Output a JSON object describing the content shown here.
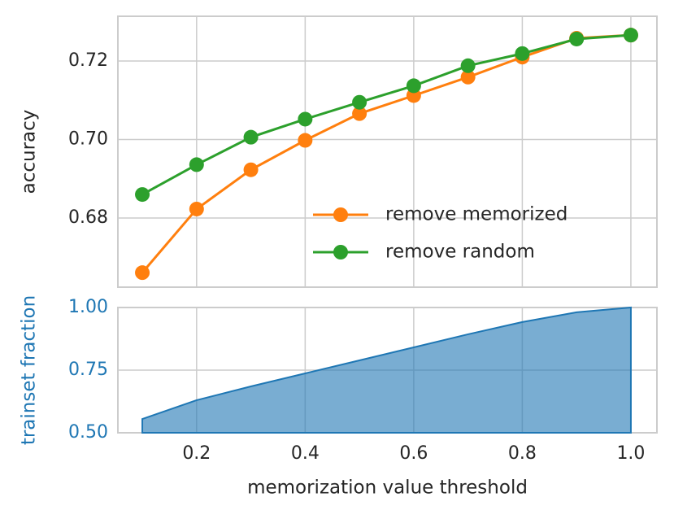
{
  "chart_data": [
    {
      "type": "line",
      "ylabel": "accuracy",
      "legend": "lower right",
      "grid": true,
      "x": [
        0.1,
        0.2,
        0.3,
        0.4,
        0.5,
        0.6,
        0.7,
        0.8,
        0.9,
        1.0
      ],
      "series": [
        {
          "name": "remove memorized",
          "color": "#ff7f0e",
          "values": [
            0.6661,
            0.6823,
            0.6923,
            0.6998,
            0.7066,
            0.7112,
            0.7159,
            0.721,
            0.7258,
            0.7266
          ]
        },
        {
          "name": "remove random",
          "color": "#2ca02c",
          "values": [
            0.686,
            0.6936,
            0.7006,
            0.7052,
            0.7095,
            0.7137,
            0.7188,
            0.7219,
            0.7256,
            0.7266
          ]
        }
      ],
      "xlim": [
        0.055,
        1.048
      ],
      "xticks": [
        0.2,
        0.4,
        0.6,
        0.8,
        1
      ],
      "ylim": [
        0.6624,
        0.7314
      ],
      "yticks": [
        {
          "value": 0.68,
          "label": "0.68"
        },
        {
          "value": 0.7,
          "label": "0.70"
        },
        {
          "value": 0.72,
          "label": "0.72"
        }
      ]
    },
    {
      "type": "area",
      "xlabel": "memorization value threshold",
      "ylabel": "trainset fraction",
      "color": "#1f77b4",
      "grid": true,
      "x": [
        0.1,
        0.2,
        0.3,
        0.4,
        0.5,
        0.6,
        0.7,
        0.8,
        0.9,
        1.0
      ],
      "values": [
        0.555,
        0.63,
        0.685,
        0.737,
        0.789,
        0.841,
        0.893,
        0.942,
        0.981,
        1.0
      ],
      "xlim": [
        0.055,
        1.048
      ],
      "xticks": [
        0.2,
        0.4,
        0.6,
        0.8,
        {
          "value": 1,
          "label": "1.0"
        }
      ],
      "ylim": [
        0.5,
        1.0
      ],
      "yticks": [
        {
          "value": 0.5,
          "label": "0.50"
        },
        0.75,
        {
          "value": 1,
          "label": "1.00"
        }
      ]
    }
  ]
}
